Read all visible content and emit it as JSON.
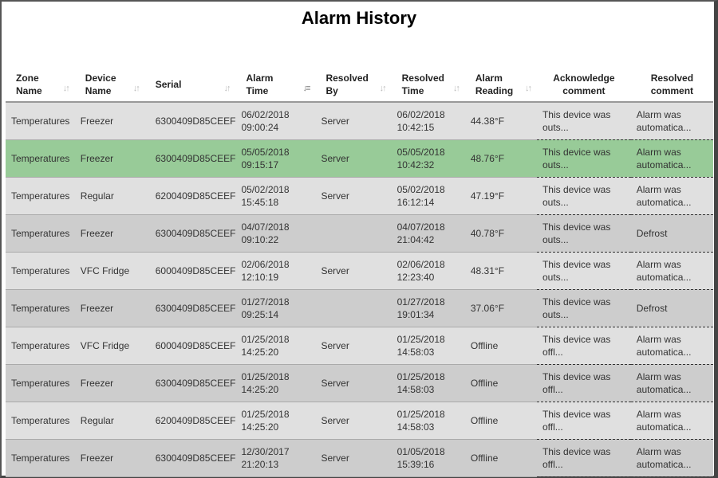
{
  "title": "Alarm History",
  "colors": {
    "highlight": "#98cb98",
    "row_light": "#e0e0e0",
    "row_dark": "#cdcdcd"
  },
  "columns": [
    {
      "l1": "Zone",
      "l2": "Name",
      "sort": "sort-icon"
    },
    {
      "l1": "Device",
      "l2": "Name",
      "sort": "sort-icon"
    },
    {
      "l1": "Serial",
      "l2": "",
      "sort": "sort-icon"
    },
    {
      "l1": "Alarm",
      "l2": "Time",
      "sort": "sort-desc-icon"
    },
    {
      "l1": "Resolved",
      "l2": "By",
      "sort": "sort-icon"
    },
    {
      "l1": "Resolved",
      "l2": "Time",
      "sort": "sort-icon"
    },
    {
      "l1": "Alarm",
      "l2": "Reading",
      "sort": "sort-icon"
    },
    {
      "l1": "Acknowledge",
      "l2": "comment"
    },
    {
      "l1": "Resolved",
      "l2": "comment"
    }
  ],
  "rows": [
    {
      "zone": "Temperatures",
      "device": "Freezer",
      "serial": "6300409D85CEEF",
      "ad": "06/02/2018",
      "at": "09:00:24",
      "by": "Server",
      "rd": "06/02/2018",
      "rt": "10:42:15",
      "reading": "44.38°F",
      "ack1": "This device was",
      "ack2": "outs...",
      "res1": "Alarm was",
      "res2": "automatica...",
      "style": "l"
    },
    {
      "zone": "Temperatures",
      "device": "Freezer",
      "serial": "6300409D85CEEF",
      "ad": "05/05/2018",
      "at": "09:15:17",
      "by": "Server",
      "rd": "05/05/2018",
      "rt": "10:42:32",
      "reading": "48.76°F",
      "ack1": "This device was",
      "ack2": "outs...",
      "res1": "Alarm was",
      "res2": "automatica...",
      "style": "g"
    },
    {
      "zone": "Temperatures",
      "device": "Regular",
      "serial": "6200409D85CEEF",
      "ad": "05/02/2018",
      "at": "15:45:18",
      "by": "Server",
      "rd": "05/02/2018",
      "rt": "16:12:14",
      "reading": "47.19°F",
      "ack1": "This device was",
      "ack2": "outs...",
      "res1": "Alarm was",
      "res2": "automatica...",
      "style": "l"
    },
    {
      "zone": "Temperatures",
      "device": "Freezer",
      "serial": "6300409D85CEEF",
      "ad": "04/07/2018",
      "at": "09:10:22",
      "by": "",
      "rd": "04/07/2018",
      "rt": "21:04:42",
      "reading": "40.78°F",
      "ack1": "This device was",
      "ack2": "outs...",
      "res1": "Defrost",
      "res2": "",
      "style": "d"
    },
    {
      "zone": "Temperatures",
      "device": "VFC Fridge",
      "serial": "6000409D85CEEF",
      "ad": "02/06/2018",
      "at": "12:10:19",
      "by": "Server",
      "rd": "02/06/2018",
      "rt": "12:23:40",
      "reading": "48.31°F",
      "ack1": "This device was",
      "ack2": "outs...",
      "res1": "Alarm was",
      "res2": "automatica...",
      "style": "l"
    },
    {
      "zone": "Temperatures",
      "device": "Freezer",
      "serial": "6300409D85CEEF",
      "ad": "01/27/2018",
      "at": "09:25:14",
      "by": "",
      "rd": "01/27/2018",
      "rt": "19:01:34",
      "reading": "37.06°F",
      "ack1": "This device was",
      "ack2": "outs...",
      "res1": "Defrost",
      "res2": "",
      "style": "d"
    },
    {
      "zone": "Temperatures",
      "device": "VFC Fridge",
      "serial": "6000409D85CEEF",
      "ad": "01/25/2018",
      "at": "14:25:20",
      "by": "Server",
      "rd": "01/25/2018",
      "rt": "14:58:03",
      "reading": "Offline",
      "ack1": "This device was",
      "ack2": "offl...",
      "res1": "Alarm was",
      "res2": "automatica...",
      "style": "l"
    },
    {
      "zone": "Temperatures",
      "device": "Freezer",
      "serial": "6300409D85CEEF",
      "ad": "01/25/2018",
      "at": "14:25:20",
      "by": "Server",
      "rd": "01/25/2018",
      "rt": "14:58:03",
      "reading": "Offline",
      "ack1": "This device was",
      "ack2": "offl...",
      "res1": "Alarm was",
      "res2": "automatica...",
      "style": "d"
    },
    {
      "zone": "Temperatures",
      "device": "Regular",
      "serial": "6200409D85CEEF",
      "ad": "01/25/2018",
      "at": "14:25:20",
      "by": "Server",
      "rd": "01/25/2018",
      "rt": "14:58:03",
      "reading": "Offline",
      "ack1": "This device was",
      "ack2": "offl...",
      "res1": "Alarm was",
      "res2": "automatica...",
      "style": "l"
    },
    {
      "zone": "Temperatures",
      "device": "Freezer",
      "serial": "6300409D85CEEF",
      "ad": "12/30/2017",
      "at": "21:20:13",
      "by": "Server",
      "rd": "01/05/2018",
      "rt": "15:39:16",
      "reading": "Offline",
      "ack1": "This device was",
      "ack2": "offl...",
      "res1": "Alarm was",
      "res2": "automatica...",
      "style": "d"
    }
  ]
}
